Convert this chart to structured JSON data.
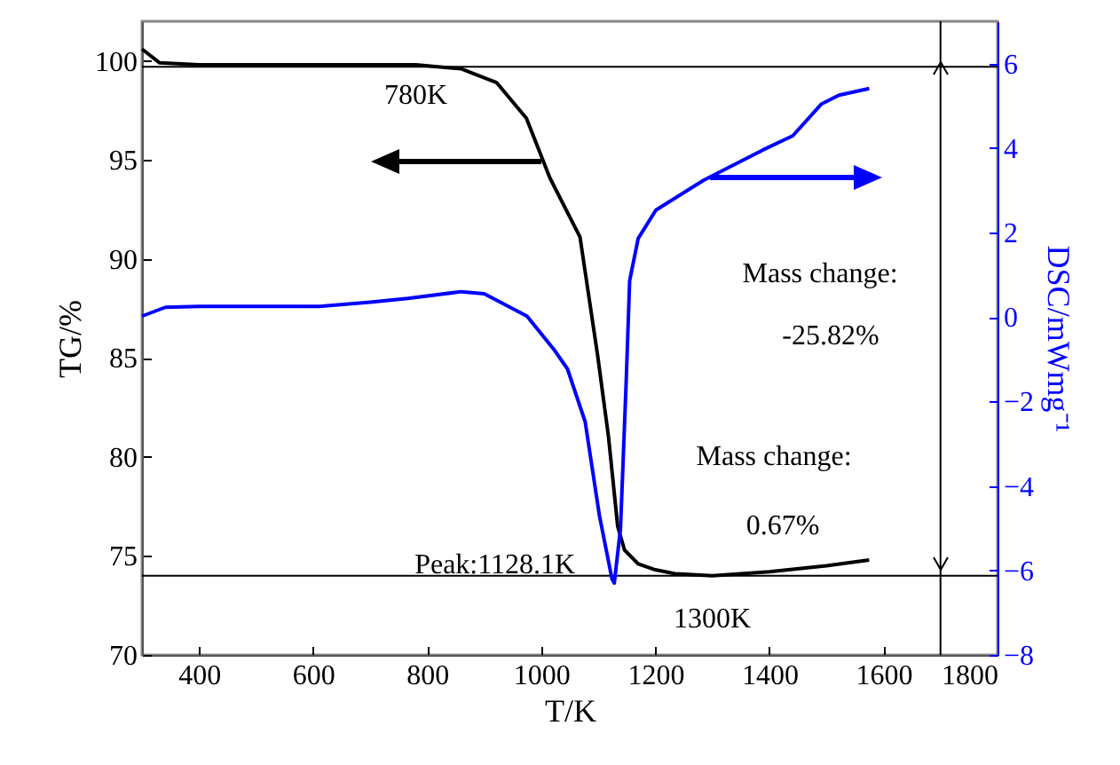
{
  "chart_data": {
    "type": "line",
    "xlabel": "T/K",
    "ylabel": "TG/%",
    "y2label": "DSC/mWmg⁻¹",
    "xlim": [
      300,
      1800
    ],
    "xticks": [
      400,
      600,
      800,
      1000,
      1200,
      1400,
      1600,
      1800
    ],
    "ylim": [
      70,
      102
    ],
    "yticks": [
      70,
      75,
      80,
      85,
      90,
      95,
      100
    ],
    "y2lim": [
      -8,
      7
    ],
    "y2ticks": [
      -8,
      -6,
      -4,
      -2,
      0,
      2,
      4,
      6
    ],
    "series": [
      {
        "color": "#000000",
        "axis": "y",
        "x": [
          300,
          331,
          400,
          500,
          600,
          700,
          780,
          860,
          922,
          974,
          1015,
          1068,
          1099,
          1118,
          1134,
          1146,
          1170,
          1200,
          1235,
          1300,
          1400,
          1500,
          1575
        ],
        "values": [
          100.6,
          99.9,
          99.8,
          99.8,
          99.8,
          99.8,
          99.8,
          99.6,
          98.9,
          97.1,
          94.1,
          91.1,
          85.1,
          81,
          76.5,
          75.3,
          74.6,
          74.3,
          74.1,
          74.0,
          74.2,
          74.5,
          74.8
        ]
      },
      {
        "color": "#0000ff",
        "axis": "y2",
        "x": [
          300,
          341,
          400,
          500,
          611,
          700,
          766,
          860,
          900,
          975,
          1024,
          1046,
          1077,
          1102,
          1124,
          1128.1,
          1139,
          1149,
          1155,
          1170,
          1201,
          1285,
          1388,
          1441,
          1491,
          1522,
          1575
        ],
        "values": [
          0.02,
          0.23,
          0.25,
          0.25,
          0.25,
          0.35,
          0.44,
          0.6,
          0.55,
          0.02,
          -0.8,
          -1.23,
          -2.48,
          -4.7,
          -6.2,
          -6.3,
          -5,
          -1.5,
          0.86,
          1.86,
          2.53,
          3.24,
          3.95,
          4.29,
          5.04,
          5.25,
          5.41
        ]
      }
    ],
    "ref_lines": [
      {
        "axis": "y",
        "value": 99.7,
        "color": "#000000"
      },
      {
        "axis": "y",
        "value": 74.0,
        "color": "#000000"
      },
      {
        "axis": "x",
        "value": 1700,
        "color": "#000000"
      }
    ],
    "annotations": [
      {
        "text": "780K",
        "x": 780,
        "y": 99.7
      },
      {
        "text": "Peak:1128.1K",
        "x": 1128.1,
        "y": 73.3
      },
      {
        "text": "1300K",
        "x": 1300,
        "y": 74.0
      },
      "Mass change:",
      "-25.82%",
      "Mass change:",
      "0.67%"
    ]
  }
}
